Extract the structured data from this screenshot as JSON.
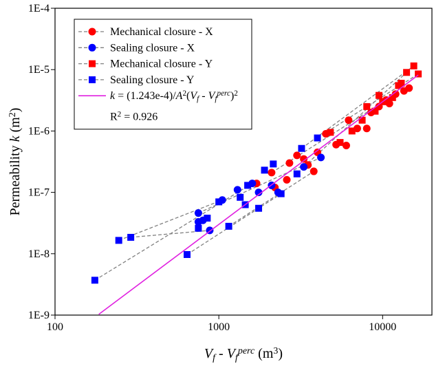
{
  "chart_data": {
    "type": "scatter",
    "xscale": "log",
    "yscale": "log",
    "xlim": [
      100,
      20000
    ],
    "ylim": [
      1e-09,
      0.0001
    ],
    "xticks": [
      100,
      1000,
      10000
    ],
    "yticks": [
      {
        "value": 1e-09,
        "label": "1E-9"
      },
      {
        "value": 1e-08,
        "label": "1E-8"
      },
      {
        "value": 1e-07,
        "label": "1E-7"
      },
      {
        "value": 1e-06,
        "label": "1E-6"
      },
      {
        "value": 1e-05,
        "label": "1E-5"
      },
      {
        "value": 0.0001,
        "label": "1E-4"
      }
    ],
    "xlabel": [
      {
        "text": "V",
        "italic": true
      },
      {
        "text": "f",
        "italic": true,
        "pos": "sub"
      },
      {
        "text": " - "
      },
      {
        "text": "V",
        "italic": true
      },
      {
        "text": "f",
        "italic": true,
        "pos": "sub"
      },
      {
        "text": "perc",
        "italic": true,
        "pos": "sup"
      },
      {
        "text": " (m"
      },
      {
        "text": "3",
        "pos": "sup"
      },
      {
        "text": ")"
      }
    ],
    "ylabel": [
      {
        "text": "Permeability "
      },
      {
        "text": "k",
        "italic": true
      },
      {
        "text": " (m"
      },
      {
        "text": "2",
        "pos": "sup"
      },
      {
        "text": ")"
      }
    ],
    "annotation": [
      {
        "text": "R"
      },
      {
        "text": "2",
        "pos": "sup"
      },
      {
        "text": " = 0.926"
      }
    ],
    "links": [
      {
        "color": "#808080",
        "dash": "dashed",
        "x": [
          175,
          1600
        ],
        "values": [
          3.7e-09,
          1.4e-07
        ]
      },
      {
        "color": "#808080",
        "dash": "dashed",
        "x": [
          245,
          1050
        ],
        "values": [
          1.65e-08,
          7.5e-08
        ]
      },
      {
        "color": "#808080",
        "dash": "dashed",
        "x": [
          290,
          880
        ],
        "values": [
          1.85e-08,
          2.4e-08
        ]
      },
      {
        "color": "#808080",
        "dash": "dashed",
        "x": [
          640,
          2400
        ],
        "values": [
          9.7e-09,
          9.5e-08
        ]
      },
      {
        "color": "#808080",
        "dash": "dashed",
        "x": [
          750,
          4200
        ],
        "values": [
          4.6e-08,
          3.7e-07
        ]
      },
      {
        "color": "#808080",
        "dash": "dashed",
        "x": [
          1150,
          3800
        ],
        "values": [
          2.8e-08,
          2.2e-07
        ]
      },
      {
        "color": "#808080",
        "dash": "dashed",
        "x": [
          3300,
          14000
        ],
        "values": [
          2.6e-07,
          9e-06
        ]
      },
      {
        "color": "#808080",
        "dash": "dashed",
        "x": [
          4000,
          16500
        ],
        "values": [
          7.7e-07,
          8.5e-06
        ]
      },
      {
        "color": "#808080",
        "dash": "dashed",
        "x": [
          2100,
          12000
        ],
        "values": [
          2.1e-07,
          4e-06
        ]
      },
      {
        "color": "#808080",
        "dash": "dashed",
        "x": [
          3200,
          15500
        ],
        "values": [
          5.2e-07,
          1.15e-05
        ]
      }
    ],
    "series": [
      {
        "name": [
          {
            "text": "Mechanical closure - X"
          }
        ],
        "color": "#ff0000",
        "marker": "circle",
        "legend_line": {
          "color": "#808080",
          "dash": "dashed"
        },
        "x": [
          1700,
          2100,
          2200,
          2600,
          2700,
          3000,
          3300,
          3500,
          3800,
          4000,
          4500,
          5200,
          6000,
          6200,
          7000,
          8000,
          8500,
          9500,
          10500,
          11000,
          12000,
          13500,
          14500
        ],
        "values": [
          1.4e-07,
          2.1e-07,
          1.2e-07,
          1.6e-07,
          3e-07,
          4e-07,
          3.5e-07,
          2.8e-07,
          2.2e-07,
          4.5e-07,
          9e-07,
          6e-07,
          5.8e-07,
          1.5e-06,
          1.1e-06,
          1.1e-06,
          2e-06,
          2.5e-06,
          3.2e-06,
          2.8e-06,
          4e-06,
          4.5e-06,
          5e-06
        ]
      },
      {
        "name": [
          {
            "text": "Sealing closure - X"
          }
        ],
        "color": "#0000ff",
        "marker": "circle",
        "legend_line": {
          "color": "#808080",
          "dash": "dashed"
        },
        "x": [
          750,
          750,
          800,
          880,
          1050,
          1300,
          1600,
          1750,
          2100,
          2300,
          3300,
          4200
        ],
        "values": [
          4.6e-08,
          3.3e-08,
          3.5e-08,
          2.4e-08,
          7.5e-08,
          1.1e-07,
          1.4e-07,
          1e-07,
          1.3e-07,
          1e-07,
          2.6e-07,
          3.7e-07
        ]
      },
      {
        "name": [
          {
            "text": "Mechanical closure - Y"
          }
        ],
        "color": "#ff0000",
        "marker": "square",
        "legend_line": {
          "color": "#808080",
          "dash": "dashed"
        },
        "x": [
          4800,
          5500,
          6500,
          7500,
          8000,
          9000,
          9500,
          10000,
          11500,
          12500,
          13000,
          14000,
          15500,
          16500
        ],
        "values": [
          9.5e-07,
          6.5e-07,
          1e-06,
          1.5e-06,
          2.5e-06,
          2.1e-06,
          3.8e-06,
          3e-06,
          3.5e-06,
          5.5e-06,
          6e-06,
          9e-06,
          1.15e-05,
          8.5e-06
        ]
      },
      {
        "name": [
          {
            "text": "Sealing closure - Y"
          }
        ],
        "color": "#0000ff",
        "marker": "square",
        "legend_line": {
          "color": "#808080",
          "dash": "dashed"
        },
        "x": [
          175,
          245,
          290,
          640,
          750,
          850,
          1000,
          1150,
          1350,
          1450,
          1500,
          1750,
          1900,
          2150,
          2400,
          3000,
          3200,
          4000
        ],
        "values": [
          3.7e-09,
          1.65e-08,
          1.85e-08,
          9.7e-09,
          2.6e-08,
          3.8e-08,
          7e-08,
          2.8e-08,
          8.3e-08,
          6.3e-08,
          1.3e-07,
          5.5e-08,
          2.3e-07,
          2.9e-07,
          9.5e-08,
          2e-07,
          5.2e-07,
          7.7e-07
        ]
      },
      {
        "name": [
          {
            "text": "k",
            "italic": true
          },
          {
            "text": " = (1.243e-4)/"
          },
          {
            "text": "A",
            "italic": true
          },
          {
            "text": "2",
            "pos": "sup"
          },
          {
            "text": "("
          },
          {
            "text": "V",
            "italic": true
          },
          {
            "text": "f",
            "italic": true,
            "pos": "sub"
          },
          {
            "text": " - "
          },
          {
            "text": "V",
            "italic": true
          },
          {
            "text": "f",
            "italic": true,
            "pos": "sub"
          },
          {
            "text": "perc",
            "italic": true,
            "pos": "sup"
          },
          {
            "text": ")"
          },
          {
            "text": "2",
            "pos": "sup"
          }
        ],
        "color": "#e020e0",
        "marker": "none",
        "line": true,
        "x": [
          185,
          16500
        ],
        "values": [
          1.03e-09,
          8.17e-06
        ]
      }
    ]
  }
}
